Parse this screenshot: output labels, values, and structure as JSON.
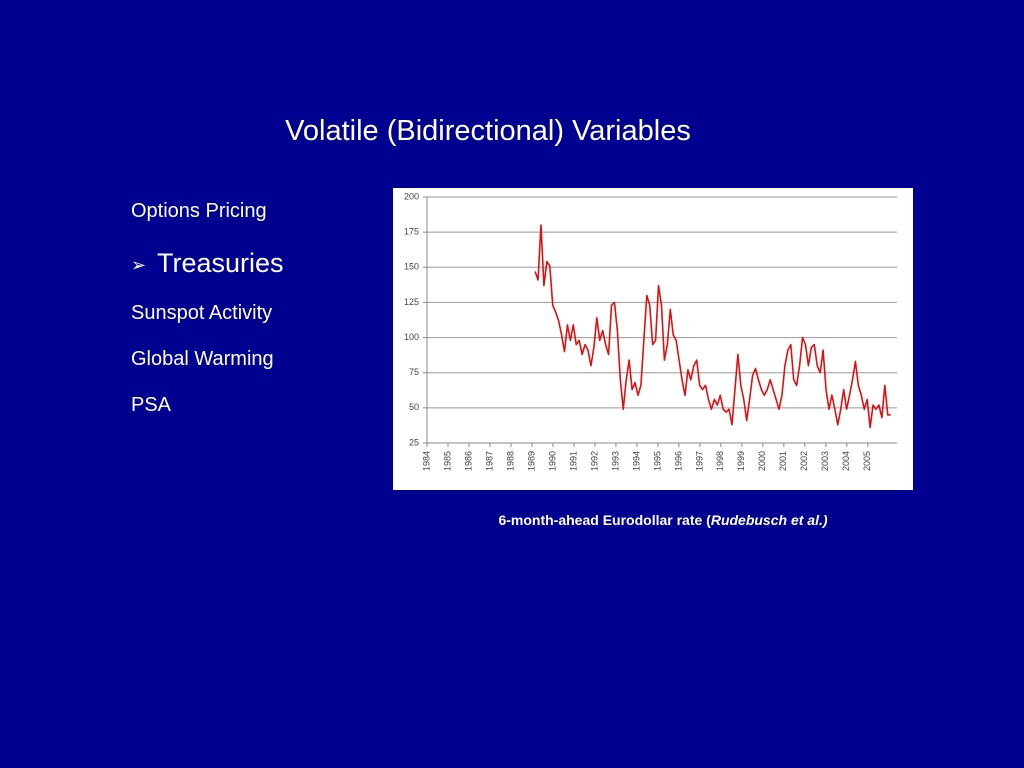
{
  "slide": {
    "title": "Volatile (Bidirectional) Variables",
    "items": [
      "Options Pricing",
      "Treasuries",
      "Sunspot Activity",
      "Global Warming",
      "PSA"
    ],
    "caption": {
      "text": "6-month-ahead Eurodollar rate (",
      "source": "Rudebusch et al.)"
    }
  },
  "chart_data": {
    "type": "line",
    "color": "#e01010",
    "grid": true,
    "xlim": [
      1984,
      2006.2
    ],
    "ylim": [
      25,
      200
    ],
    "xticks": [
      1984,
      1985,
      1986,
      1987,
      1988,
      1989,
      1990,
      1991,
      1992,
      1993,
      1994,
      1995,
      1996,
      1997,
      1998,
      1999,
      2000,
      2001,
      2002,
      2003,
      2004,
      2005
    ],
    "yticks": [
      25,
      50,
      75,
      100,
      125,
      150,
      175,
      200
    ],
    "x": [
      1989.15,
      1989.29,
      1989.43,
      1989.57,
      1989.71,
      1989.85,
      1989.99,
      1990.13,
      1990.27,
      1990.41,
      1990.55,
      1990.69,
      1990.83,
      1990.97,
      1991.11,
      1991.25,
      1991.39,
      1991.53,
      1991.67,
      1991.81,
      1991.95,
      1992.09,
      1992.23,
      1992.37,
      1992.51,
      1992.65,
      1992.79,
      1992.93,
      1993.07,
      1993.21,
      1993.35,
      1993.49,
      1993.63,
      1993.77,
      1993.91,
      1994.05,
      1994.19,
      1994.33,
      1994.47,
      1994.61,
      1994.75,
      1994.89,
      1995.03,
      1995.17,
      1995.31,
      1995.45,
      1995.59,
      1995.73,
      1995.87,
      1996.01,
      1996.15,
      1996.29,
      1996.43,
      1996.57,
      1996.71,
      1996.85,
      1996.99,
      1997.13,
      1997.27,
      1997.41,
      1997.55,
      1997.69,
      1997.83,
      1997.97,
      1998.11,
      1998.25,
      1998.39,
      1998.53,
      1998.67,
      1998.81,
      1998.95,
      1999.09,
      1999.23,
      1999.37,
      1999.51,
      1999.65,
      1999.79,
      1999.93,
      2000.07,
      2000.21,
      2000.35,
      2000.49,
      2000.63,
      2000.77,
      2000.91,
      2001.05,
      2001.19,
      2001.33,
      2001.47,
      2001.61,
      2001.75,
      2001.89,
      2002.03,
      2002.17,
      2002.31,
      2002.45,
      2002.59,
      2002.73,
      2002.87,
      2003.01,
      2003.15,
      2003.29,
      2003.43,
      2003.57,
      2003.71,
      2003.85,
      2003.99,
      2004.13,
      2004.27,
      2004.41,
      2004.55,
      2004.69,
      2004.83,
      2004.97,
      2005.11,
      2005.25,
      2005.39,
      2005.53,
      2005.67,
      2005.81,
      2005.95,
      2006.09
    ],
    "values": [
      147,
      141,
      180,
      137,
      154,
      151,
      123,
      118,
      112,
      102,
      90,
      109,
      98,
      109,
      95,
      98,
      88,
      95,
      91,
      80,
      93,
      114,
      98,
      105,
      95,
      88,
      123,
      125,
      105,
      70,
      49,
      70,
      84,
      63,
      68,
      59,
      66,
      98,
      130,
      123,
      95,
      98,
      137,
      123,
      84,
      95,
      120,
      102,
      98,
      84,
      70,
      59,
      77,
      70,
      80,
      84,
      66,
      63,
      66,
      56,
      49,
      56,
      52,
      59,
      49,
      47,
      49,
      38,
      63,
      88,
      66,
      56,
      41,
      56,
      73,
      78,
      70,
      63,
      59,
      63,
      70,
      63,
      56,
      49,
      59,
      80,
      91,
      95,
      70,
      66,
      80,
      100,
      95,
      80,
      93,
      95,
      80,
      75,
      91,
      63,
      49,
      59,
      49,
      38,
      49,
      63,
      49,
      59,
      70,
      83,
      66,
      59,
      49,
      56,
      36,
      52,
      49,
      52,
      43,
      66,
      45,
      45
    ]
  }
}
